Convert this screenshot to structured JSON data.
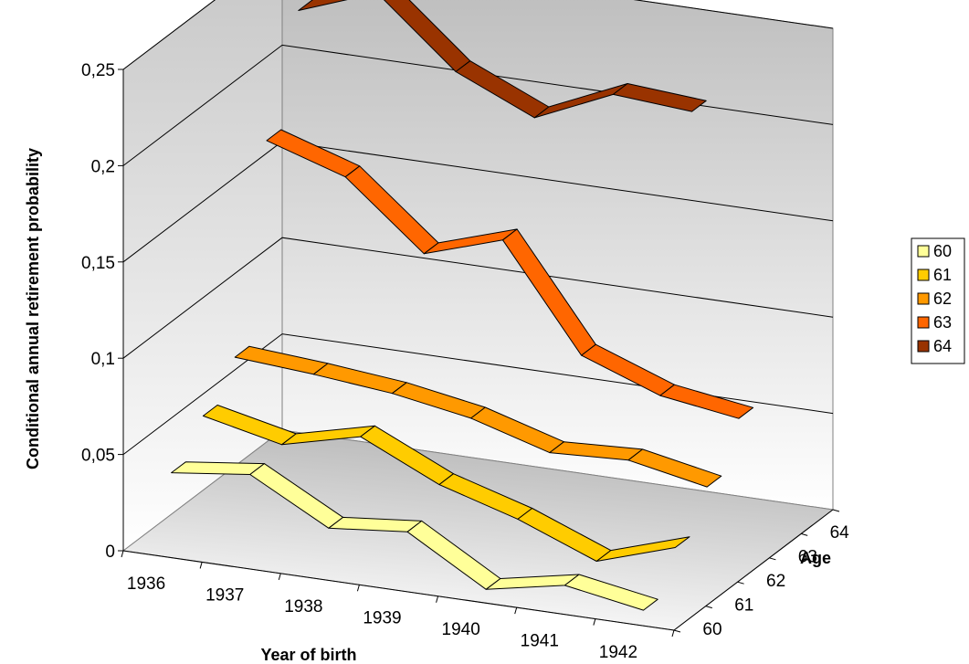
{
  "chart_data": {
    "type": "line",
    "title": "",
    "xlabel": "Year of birth",
    "ylabel": "Conditional annual retirement probability",
    "zlabel": "Age",
    "x": [
      "1936",
      "1937",
      "1938",
      "1939",
      "1940",
      "1941",
      "1942"
    ],
    "z_categories": [
      "60",
      "61",
      "62",
      "63",
      "64"
    ],
    "y_ticks": [
      "0",
      "0,05",
      "0,1",
      "0,15",
      "0,2",
      "0,25"
    ],
    "ylim": [
      0,
      0.25
    ],
    "grid": true,
    "legend_position": "right",
    "projection": "3d",
    "series": [
      {
        "name": "60",
        "color": "#FFFF99",
        "values": [
          0.04,
          0.045,
          0.023,
          0.027,
          0.003,
          0.011,
          0.004
        ]
      },
      {
        "name": "61",
        "color": "#FFCC00",
        "values": [
          0.057,
          0.048,
          0.058,
          0.039,
          0.027,
          0.011,
          0.024
        ]
      },
      {
        "name": "62",
        "color": "#FF9900",
        "values": [
          0.075,
          0.072,
          0.068,
          0.061,
          0.049,
          0.051,
          0.043
        ]
      },
      {
        "name": "63",
        "color": "#FF6600",
        "values": [
          0.175,
          0.162,
          0.128,
          0.141,
          0.087,
          0.072,
          0.066
        ]
      },
      {
        "name": "64",
        "color": "#993300",
        "values": [
          0.23,
          0.245,
          0.21,
          0.192,
          0.21,
          0.207,
          null
        ]
      }
    ]
  }
}
